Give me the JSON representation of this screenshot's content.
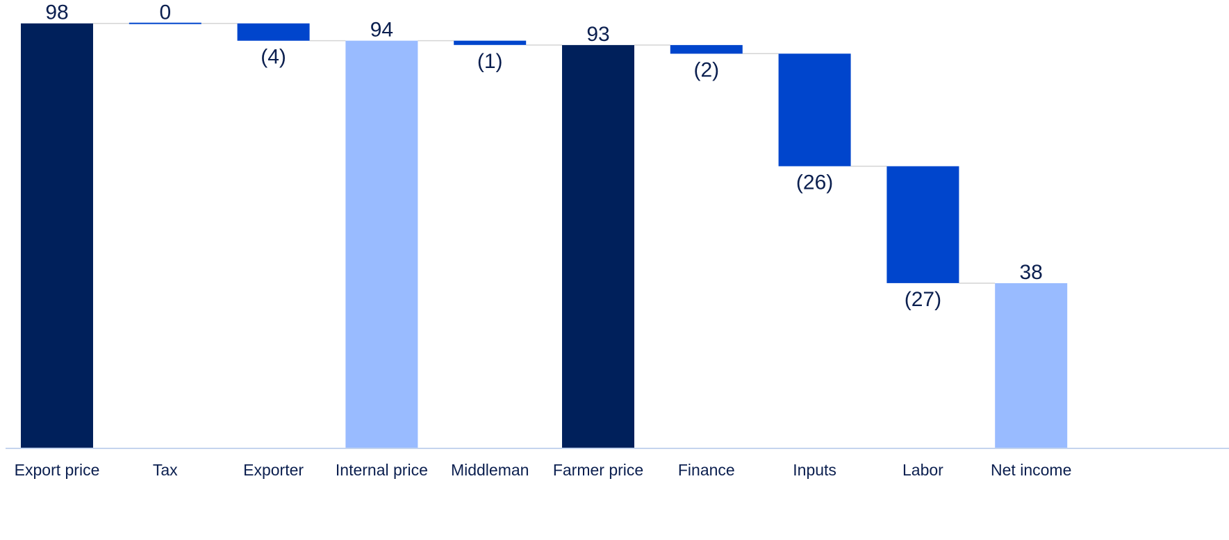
{
  "chart_data": {
    "type": "bar",
    "subtype": "waterfall",
    "categories": [
      "Export price",
      "Tax",
      "Exporter",
      "Internal price",
      "Middleman",
      "Farmer price",
      "Finance",
      "Inputs",
      "Labor",
      "Net income"
    ],
    "values": [
      98,
      0,
      -4,
      94,
      -1,
      93,
      -2,
      -26,
      -27,
      38
    ],
    "value_labels": [
      "98",
      "0",
      "(4)",
      "94",
      "(1)",
      "93",
      "(2)",
      "(26)",
      "(27)",
      "38"
    ],
    "bar_kinds": [
      "total",
      "change",
      "change",
      "total",
      "change",
      "total",
      "change",
      "change",
      "change",
      "total"
    ],
    "title": "",
    "xlabel": "",
    "ylabel": "",
    "ylim": [
      0,
      100
    ],
    "grid": false,
    "connector_lines": true,
    "colors": {
      "total_dark": "#00205b",
      "total_light": "#99bbff",
      "change": "#0045cc",
      "axis": "#c4d4ee",
      "connector": "#d4d4d4",
      "text": "#0b1f4f"
    },
    "bar_colors": [
      "total_dark",
      "change",
      "change",
      "total_light",
      "change",
      "total_dark",
      "change",
      "change",
      "change",
      "total_light"
    ]
  }
}
